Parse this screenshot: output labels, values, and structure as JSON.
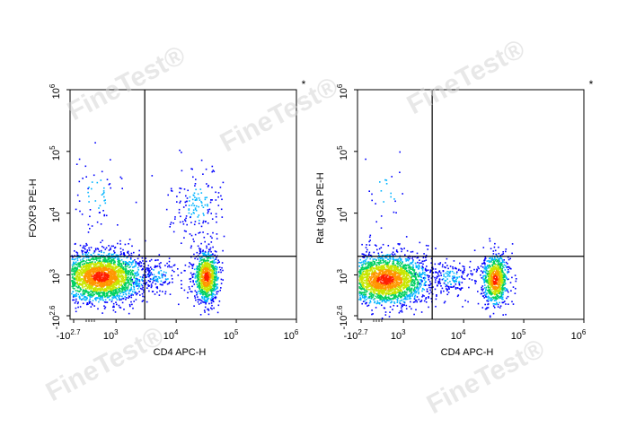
{
  "watermark": "FineTest®",
  "chart_data": [
    {
      "type": "scatter",
      "subtype": "flow-cytometry-density-plot",
      "xlabel": "CD4 APC-H",
      "ylabel": "FOXP3 PE-H",
      "corner_mark": "*",
      "x_ticks": [
        {
          "base": "-10",
          "exp": "2.7"
        },
        {
          "base": "10",
          "exp": "3"
        },
        {
          "base": "10",
          "exp": "4"
        },
        {
          "base": "10",
          "exp": "5"
        },
        {
          "base": "10",
          "exp": "6"
        }
      ],
      "y_ticks": [
        {
          "base": "-10",
          "exp": "2.6"
        },
        {
          "base": "10",
          "exp": "3"
        },
        {
          "base": "10",
          "exp": "4"
        },
        {
          "base": "10",
          "exp": "5"
        },
        {
          "base": "10",
          "exp": "6"
        }
      ],
      "gate": {
        "x": 3000,
        "y": 2000
      },
      "colormap": [
        "#0000ff",
        "#00b4ff",
        "#00d060",
        "#c8e600",
        "#ff9600",
        "#ff1e00"
      ],
      "populations": [
        {
          "x": 400,
          "y": 950,
          "count": 2600
        },
        {
          "x": 31000,
          "y": 950,
          "count": 900
        },
        {
          "x": 22000,
          "y": 14000,
          "count": 160
        },
        {
          "x": 300,
          "y": 20000,
          "count": 60
        },
        {
          "x": 5000,
          "y": 1000,
          "count": 120
        }
      ]
    },
    {
      "type": "scatter",
      "subtype": "flow-cytometry-density-plot",
      "xlabel": "CD4 APC-H",
      "ylabel": "Rat IgG2a PE-H",
      "corner_mark": "*",
      "x_ticks": [
        {
          "base": "-10",
          "exp": "2.7"
        },
        {
          "base": "10",
          "exp": "3"
        },
        {
          "base": "10",
          "exp": "4"
        },
        {
          "base": "10",
          "exp": "5"
        },
        {
          "base": "10",
          "exp": "6"
        }
      ],
      "y_ticks": [
        {
          "base": "-10",
          "exp": "2.6"
        },
        {
          "base": "10",
          "exp": "3"
        },
        {
          "base": "10",
          "exp": "4"
        },
        {
          "base": "10",
          "exp": "5"
        },
        {
          "base": "10",
          "exp": "6"
        }
      ],
      "gate": {
        "x": 3000,
        "y": 2000
      },
      "colormap": [
        "#0000ff",
        "#00b4ff",
        "#00d060",
        "#c8e600",
        "#ff9600",
        "#ff1e00"
      ],
      "populations": [
        {
          "x": 300,
          "y": 850,
          "count": 2400
        },
        {
          "x": 33000,
          "y": 850,
          "count": 800
        },
        {
          "x": 6000,
          "y": 900,
          "count": 180
        },
        {
          "x": 300,
          "y": 20000,
          "count": 25
        }
      ]
    }
  ]
}
